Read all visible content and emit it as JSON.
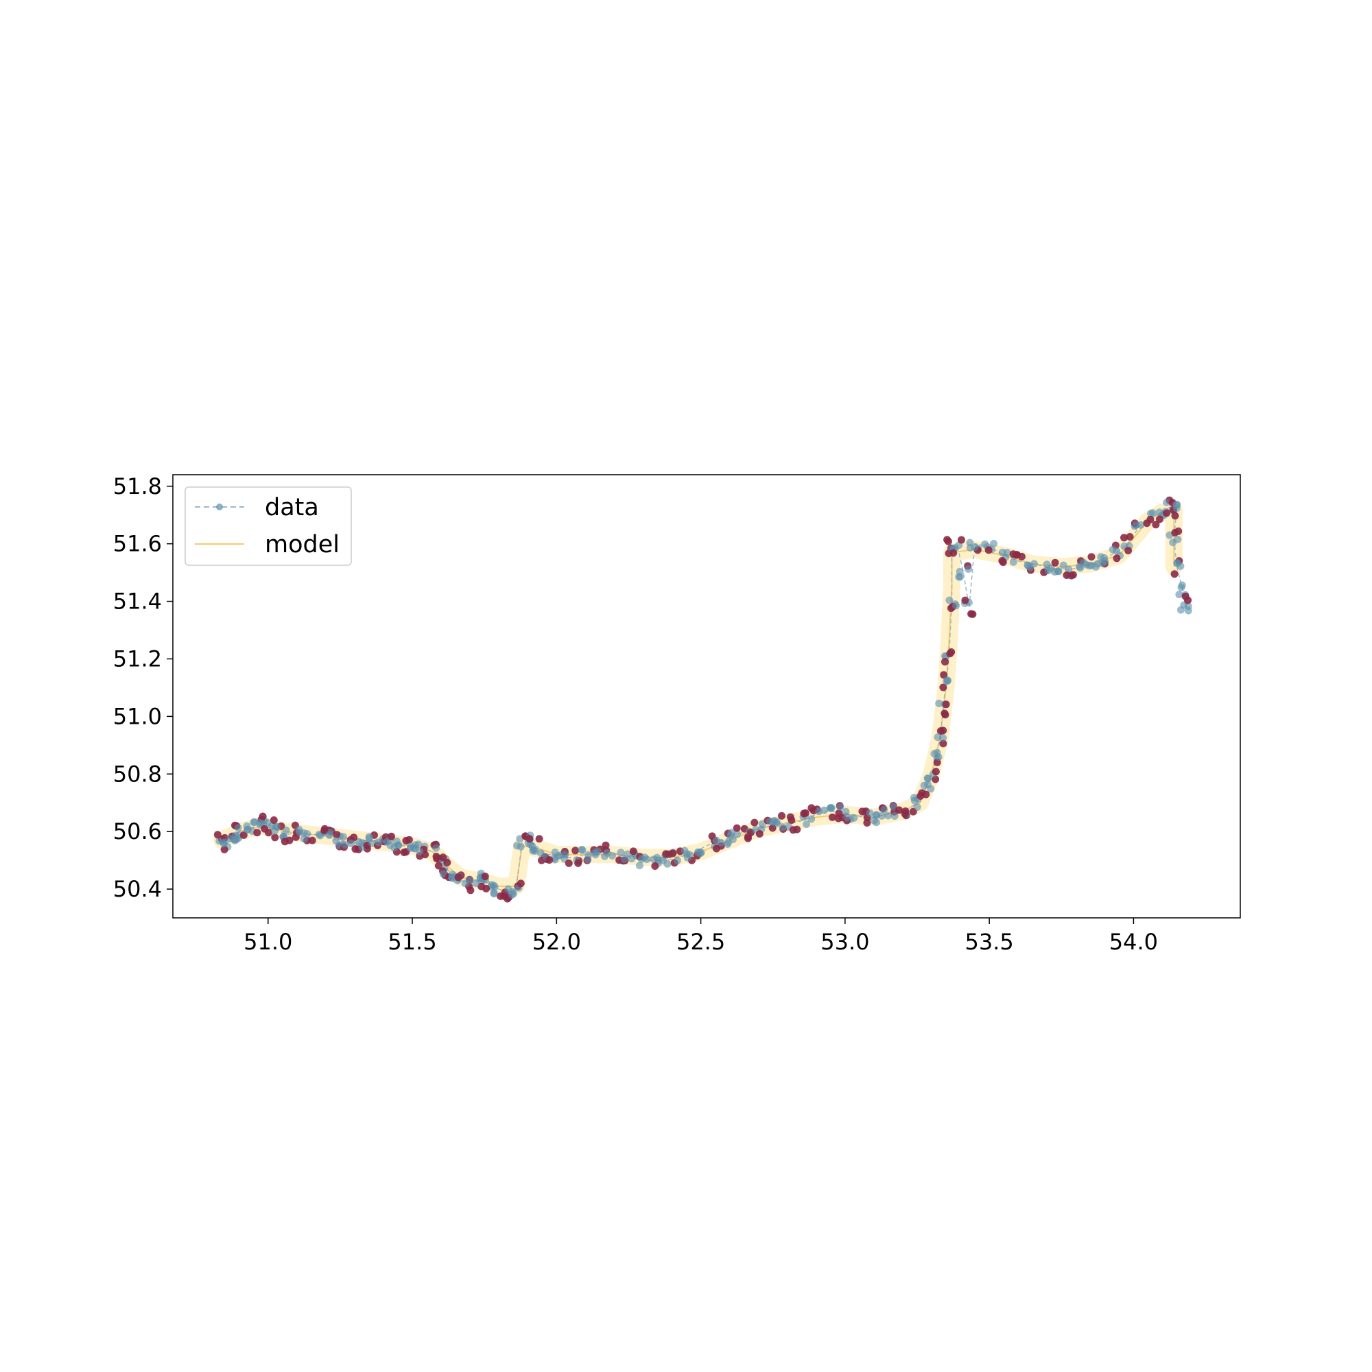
{
  "chart_data": {
    "type": "scatter",
    "title": "",
    "xlabel": "",
    "ylabel": "",
    "xlim": [
      50.67,
      54.37
    ],
    "ylim": [
      50.3,
      51.84
    ],
    "x_ticks": [
      "51.0",
      "51.5",
      "52.0",
      "52.5",
      "53.0",
      "53.5",
      "54.0"
    ],
    "y_ticks": [
      "50.4",
      "50.6",
      "50.8",
      "51.0",
      "51.2",
      "51.4",
      "51.6",
      "51.8"
    ],
    "grid": false,
    "legend": {
      "position": "top-left",
      "entries": [
        "data",
        "model"
      ]
    },
    "colors": {
      "data_point": "#5b8fae",
      "data_line": "#9bb8cc",
      "outlier_point": "#8b2a47",
      "model_line": "#f5c96a",
      "model_band": "#fdecb8"
    },
    "series": [
      {
        "name": "data",
        "style": "dashed line with markers",
        "points": [
          [
            50.84,
            50.57
          ],
          [
            50.86,
            50.56
          ],
          [
            50.88,
            50.58
          ],
          [
            50.9,
            50.6
          ],
          [
            50.93,
            50.61
          ],
          [
            50.96,
            50.62
          ],
          [
            50.99,
            50.63
          ],
          [
            51.01,
            50.62
          ],
          [
            51.04,
            50.6
          ],
          [
            51.07,
            50.59
          ],
          [
            51.1,
            50.6
          ],
          [
            51.14,
            50.59
          ],
          [
            51.18,
            50.59
          ],
          [
            51.21,
            50.58
          ],
          [
            51.24,
            50.57
          ],
          [
            51.27,
            50.57
          ],
          [
            51.3,
            50.56
          ],
          [
            51.33,
            50.56
          ],
          [
            51.36,
            50.57
          ],
          [
            51.39,
            50.57
          ],
          [
            51.42,
            50.56
          ],
          [
            51.45,
            50.55
          ],
          [
            51.48,
            50.55
          ],
          [
            51.51,
            50.55
          ],
          [
            51.54,
            50.54
          ],
          [
            51.57,
            50.53
          ],
          [
            51.6,
            50.5
          ],
          [
            51.62,
            50.47
          ],
          [
            51.64,
            50.45
          ],
          [
            51.67,
            50.43
          ],
          [
            51.7,
            50.42
          ],
          [
            51.73,
            50.43
          ],
          [
            51.75,
            50.44
          ],
          [
            51.77,
            50.42
          ],
          [
            51.8,
            50.4
          ],
          [
            51.83,
            50.39
          ],
          [
            51.86,
            50.4
          ],
          [
            51.88,
            50.56
          ],
          [
            51.9,
            50.57
          ],
          [
            51.93,
            50.55
          ],
          [
            51.96,
            50.52
          ],
          [
            51.99,
            50.52
          ],
          [
            52.02,
            50.51
          ],
          [
            52.06,
            50.51
          ],
          [
            52.1,
            50.52
          ],
          [
            52.14,
            50.53
          ],
          [
            52.18,
            50.53
          ],
          [
            52.22,
            50.52
          ],
          [
            52.26,
            50.51
          ],
          [
            52.3,
            50.5
          ],
          [
            52.34,
            50.5
          ],
          [
            52.38,
            50.5
          ],
          [
            52.42,
            50.51
          ],
          [
            52.46,
            50.52
          ],
          [
            52.5,
            50.54
          ],
          [
            52.54,
            50.56
          ],
          [
            52.58,
            50.57
          ],
          [
            52.62,
            50.59
          ],
          [
            52.66,
            50.6
          ],
          [
            52.7,
            50.61
          ],
          [
            52.74,
            50.62
          ],
          [
            52.78,
            50.63
          ],
          [
            52.82,
            50.63
          ],
          [
            52.86,
            50.64
          ],
          [
            52.9,
            50.66
          ],
          [
            52.94,
            50.67
          ],
          [
            52.98,
            50.67
          ],
          [
            53.02,
            50.66
          ],
          [
            53.06,
            50.65
          ],
          [
            53.1,
            50.65
          ],
          [
            53.14,
            50.66
          ],
          [
            53.18,
            50.67
          ],
          [
            53.22,
            50.68
          ],
          [
            53.25,
            50.7
          ],
          [
            53.28,
            50.75
          ],
          [
            53.3,
            50.8
          ],
          [
            53.32,
            50.86
          ],
          [
            53.33,
            50.93
          ],
          [
            53.34,
            51.03
          ],
          [
            53.35,
            51.12
          ],
          [
            53.36,
            51.2
          ],
          [
            53.37,
            51.4
          ],
          [
            53.37,
            51.59
          ],
          [
            53.39,
            51.59
          ],
          [
            53.41,
            51.5
          ],
          [
            53.43,
            51.38
          ],
          [
            53.45,
            51.6
          ],
          [
            53.5,
            51.59
          ],
          [
            53.55,
            51.56
          ],
          [
            53.6,
            51.54
          ],
          [
            53.65,
            51.53
          ],
          [
            53.7,
            51.52
          ],
          [
            53.74,
            51.51
          ],
          [
            53.78,
            51.51
          ],
          [
            53.82,
            51.52
          ],
          [
            53.86,
            51.53
          ],
          [
            53.9,
            51.55
          ],
          [
            53.94,
            51.57
          ],
          [
            53.98,
            51.6
          ],
          [
            54.02,
            51.66
          ],
          [
            54.06,
            51.69
          ],
          [
            54.1,
            51.71
          ],
          [
            54.13,
            51.73
          ],
          [
            54.15,
            51.72
          ],
          [
            54.14,
            51.62
          ],
          [
            54.15,
            51.52
          ],
          [
            54.17,
            51.44
          ],
          [
            54.18,
            51.38
          ]
        ]
      },
      {
        "name": "model",
        "style": "solid line with shaded band",
        "band_halfwidth": 0.03,
        "points": [
          [
            50.84,
            50.57
          ],
          [
            50.9,
            50.6
          ],
          [
            50.98,
            50.62
          ],
          [
            51.06,
            50.6
          ],
          [
            51.15,
            50.59
          ],
          [
            51.24,
            50.58
          ],
          [
            51.33,
            50.57
          ],
          [
            51.42,
            50.56
          ],
          [
            51.5,
            50.55
          ],
          [
            51.57,
            50.53
          ],
          [
            51.62,
            50.48
          ],
          [
            51.67,
            50.44
          ],
          [
            51.73,
            50.43
          ],
          [
            51.8,
            50.41
          ],
          [
            51.86,
            50.41
          ],
          [
            51.88,
            50.55
          ],
          [
            51.94,
            50.54
          ],
          [
            52.0,
            50.52
          ],
          [
            52.1,
            50.52
          ],
          [
            52.2,
            50.52
          ],
          [
            52.3,
            50.51
          ],
          [
            52.4,
            50.51
          ],
          [
            52.5,
            50.53
          ],
          [
            52.6,
            50.57
          ],
          [
            52.7,
            50.61
          ],
          [
            52.8,
            50.63
          ],
          [
            52.9,
            50.65
          ],
          [
            53.0,
            50.66
          ],
          [
            53.1,
            50.65
          ],
          [
            53.2,
            50.67
          ],
          [
            53.26,
            50.7
          ],
          [
            53.3,
            50.8
          ],
          [
            53.33,
            50.93
          ],
          [
            53.35,
            51.1
          ],
          [
            53.36,
            51.25
          ],
          [
            53.37,
            51.45
          ],
          [
            53.37,
            51.57
          ],
          [
            53.45,
            51.58
          ],
          [
            53.55,
            51.56
          ],
          [
            53.65,
            51.53
          ],
          [
            53.75,
            51.52
          ],
          [
            53.85,
            51.53
          ],
          [
            53.95,
            51.56
          ],
          [
            54.0,
            51.62
          ],
          [
            54.05,
            51.68
          ],
          [
            54.1,
            51.71
          ],
          [
            54.14,
            51.72
          ],
          [
            54.14,
            51.52
          ]
        ]
      }
    ]
  }
}
